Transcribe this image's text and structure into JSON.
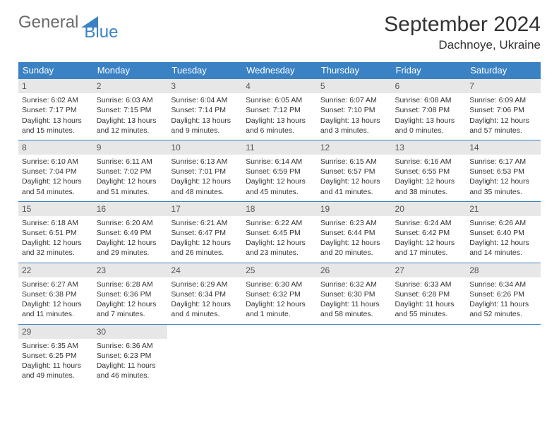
{
  "logo": {
    "general": "General",
    "blue": "Blue"
  },
  "title": "September 2024",
  "location": "Dachnoye, Ukraine",
  "colors": {
    "accent": "#3b82c4",
    "daynum_bg": "#e7e7e7",
    "text": "#333333",
    "logo_gray": "#6b6b6b"
  },
  "day_headers": [
    "Sunday",
    "Monday",
    "Tuesday",
    "Wednesday",
    "Thursday",
    "Friday",
    "Saturday"
  ],
  "weeks": [
    [
      {
        "n": "1",
        "sr": "6:02 AM",
        "ss": "7:17 PM",
        "dl": "13 hours and 15 minutes."
      },
      {
        "n": "2",
        "sr": "6:03 AM",
        "ss": "7:15 PM",
        "dl": "13 hours and 12 minutes."
      },
      {
        "n": "3",
        "sr": "6:04 AM",
        "ss": "7:14 PM",
        "dl": "13 hours and 9 minutes."
      },
      {
        "n": "4",
        "sr": "6:05 AM",
        "ss": "7:12 PM",
        "dl": "13 hours and 6 minutes."
      },
      {
        "n": "5",
        "sr": "6:07 AM",
        "ss": "7:10 PM",
        "dl": "13 hours and 3 minutes."
      },
      {
        "n": "6",
        "sr": "6:08 AM",
        "ss": "7:08 PM",
        "dl": "13 hours and 0 minutes."
      },
      {
        "n": "7",
        "sr": "6:09 AM",
        "ss": "7:06 PM",
        "dl": "12 hours and 57 minutes."
      }
    ],
    [
      {
        "n": "8",
        "sr": "6:10 AM",
        "ss": "7:04 PM",
        "dl": "12 hours and 54 minutes."
      },
      {
        "n": "9",
        "sr": "6:11 AM",
        "ss": "7:02 PM",
        "dl": "12 hours and 51 minutes."
      },
      {
        "n": "10",
        "sr": "6:13 AM",
        "ss": "7:01 PM",
        "dl": "12 hours and 48 minutes."
      },
      {
        "n": "11",
        "sr": "6:14 AM",
        "ss": "6:59 PM",
        "dl": "12 hours and 45 minutes."
      },
      {
        "n": "12",
        "sr": "6:15 AM",
        "ss": "6:57 PM",
        "dl": "12 hours and 41 minutes."
      },
      {
        "n": "13",
        "sr": "6:16 AM",
        "ss": "6:55 PM",
        "dl": "12 hours and 38 minutes."
      },
      {
        "n": "14",
        "sr": "6:17 AM",
        "ss": "6:53 PM",
        "dl": "12 hours and 35 minutes."
      }
    ],
    [
      {
        "n": "15",
        "sr": "6:18 AM",
        "ss": "6:51 PM",
        "dl": "12 hours and 32 minutes."
      },
      {
        "n": "16",
        "sr": "6:20 AM",
        "ss": "6:49 PM",
        "dl": "12 hours and 29 minutes."
      },
      {
        "n": "17",
        "sr": "6:21 AM",
        "ss": "6:47 PM",
        "dl": "12 hours and 26 minutes."
      },
      {
        "n": "18",
        "sr": "6:22 AM",
        "ss": "6:45 PM",
        "dl": "12 hours and 23 minutes."
      },
      {
        "n": "19",
        "sr": "6:23 AM",
        "ss": "6:44 PM",
        "dl": "12 hours and 20 minutes."
      },
      {
        "n": "20",
        "sr": "6:24 AM",
        "ss": "6:42 PM",
        "dl": "12 hours and 17 minutes."
      },
      {
        "n": "21",
        "sr": "6:26 AM",
        "ss": "6:40 PM",
        "dl": "12 hours and 14 minutes."
      }
    ],
    [
      {
        "n": "22",
        "sr": "6:27 AM",
        "ss": "6:38 PM",
        "dl": "12 hours and 11 minutes."
      },
      {
        "n": "23",
        "sr": "6:28 AM",
        "ss": "6:36 PM",
        "dl": "12 hours and 7 minutes."
      },
      {
        "n": "24",
        "sr": "6:29 AM",
        "ss": "6:34 PM",
        "dl": "12 hours and 4 minutes."
      },
      {
        "n": "25",
        "sr": "6:30 AM",
        "ss": "6:32 PM",
        "dl": "12 hours and 1 minute."
      },
      {
        "n": "26",
        "sr": "6:32 AM",
        "ss": "6:30 PM",
        "dl": "11 hours and 58 minutes."
      },
      {
        "n": "27",
        "sr": "6:33 AM",
        "ss": "6:28 PM",
        "dl": "11 hours and 55 minutes."
      },
      {
        "n": "28",
        "sr": "6:34 AM",
        "ss": "6:26 PM",
        "dl": "11 hours and 52 minutes."
      }
    ],
    [
      {
        "n": "29",
        "sr": "6:35 AM",
        "ss": "6:25 PM",
        "dl": "11 hours and 49 minutes."
      },
      {
        "n": "30",
        "sr": "6:36 AM",
        "ss": "6:23 PM",
        "dl": "11 hours and 46 minutes."
      },
      null,
      null,
      null,
      null,
      null
    ]
  ],
  "labels": {
    "sunrise": "Sunrise: ",
    "sunset": "Sunset: ",
    "daylight": "Daylight: "
  }
}
